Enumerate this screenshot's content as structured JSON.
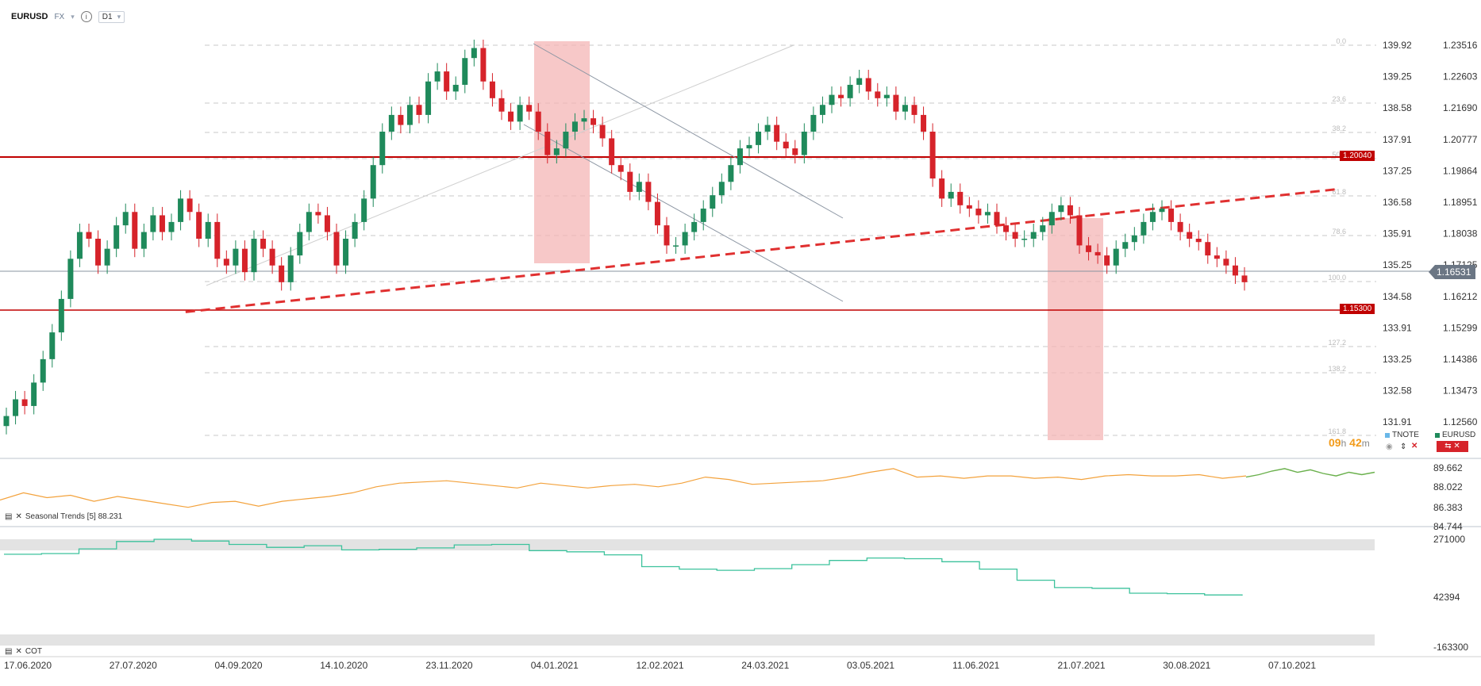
{
  "header": {
    "symbol": "EURUSD",
    "market": "FX",
    "info": "i",
    "timeframe": "D1",
    "dropdown": "▾"
  },
  "legend": {
    "tnote": "TNOTE",
    "eurusd": "EURUSD",
    "timer_h": "09",
    "h": "h",
    "timer_m": "42",
    "m": "m"
  },
  "colors": {
    "up": "#1f8a5b",
    "down": "#d6232a",
    "tnote": "#f3a23c",
    "seasonal": "#6ab04c",
    "cot": "#3cc29c",
    "hline": "#c00000",
    "fib": "#c8c8c8",
    "zone": "#f4b6b6",
    "axis": "#333333"
  },
  "panels": {
    "seasonal_label": "Seasonal  Trends [5] 88.231",
    "cot_label": "COT"
  },
  "chart_data": {
    "type": "candlestick",
    "title": "EURUSD",
    "x_ticks": [
      "17.06.2020",
      "27.07.2020",
      "04.09.2020",
      "14.10.2020",
      "23.11.2020",
      "04.01.2021",
      "12.02.2021",
      "24.03.2021",
      "03.05.2021",
      "11.06.2021",
      "21.07.2021",
      "30.08.2021",
      "07.10.2021"
    ],
    "price_axis_right": [
      "1.23516",
      "1.22603",
      "1.21690",
      "1.20777",
      "1.19864",
      "1.18951",
      "1.18038",
      "1.17125",
      "1.16212",
      "1.15299",
      "1.14386",
      "1.13473",
      "1.12560"
    ],
    "price_axis_left": [
      "139.92",
      "139.25",
      "138.58",
      "137.91",
      "137.25",
      "136.58",
      "135.91",
      "135.25",
      "134.58",
      "133.91",
      "133.25",
      "132.58",
      "131.91"
    ],
    "ylim": [
      1.1185,
      1.2375
    ],
    "current_price": "1.16531",
    "horizontal_levels": [
      {
        "label": "1.20040",
        "value": 1.2004
      },
      {
        "label": "1.15300",
        "value": 1.153
      }
    ],
    "fib_labels": [
      "0.0",
      "23.6",
      "38.2",
      "50.0",
      "61.8",
      "78.6",
      "100.0",
      "127.2",
      "138.2",
      "161.8"
    ],
    "trendline_start": {
      "date": "2020-09-04",
      "value": 1.158
    },
    "trendline_end": {
      "date": "2021-10-30",
      "value": 1.1928
    },
    "close_series": [
      1.125,
      1.13,
      1.128,
      1.135,
      1.142,
      1.15,
      1.16,
      1.172,
      1.18,
      1.178,
      1.17,
      1.175,
      1.182,
      1.186,
      1.175,
      1.18,
      1.185,
      1.18,
      1.183,
      1.19,
      1.186,
      1.178,
      1.183,
      1.172,
      1.17,
      1.175,
      1.168,
      1.178,
      1.175,
      1.17,
      1.165,
      1.173,
      1.18,
      1.186,
      1.185,
      1.18,
      1.17,
      1.178,
      1.183,
      1.19,
      1.2,
      1.21,
      1.215,
      1.212,
      1.218,
      1.215,
      1.225,
      1.228,
      1.222,
      1.224,
      1.232,
      1.235,
      1.225,
      1.22,
      1.216,
      1.213,
      1.218,
      1.216,
      1.21,
      1.203,
      1.205,
      1.21,
      1.213,
      1.214,
      1.212,
      1.208,
      1.2,
      1.198,
      1.192,
      1.195,
      1.189,
      1.182,
      1.176,
      1.176,
      1.18,
      1.183,
      1.187,
      1.191,
      1.195,
      1.2,
      1.205,
      1.206,
      1.21,
      1.212,
      1.207,
      1.205,
      1.203,
      1.21,
      1.215,
      1.218,
      1.221,
      1.22,
      1.224,
      1.226,
      1.222,
      1.22,
      1.221,
      1.216,
      1.218,
      1.215,
      1.21,
      1.196,
      1.19,
      1.192,
      1.188,
      1.187,
      1.185,
      1.186,
      1.182,
      1.18,
      1.178,
      1.178,
      1.18,
      1.182,
      1.186,
      1.188,
      1.185,
      1.176,
      1.174,
      1.173,
      1.17,
      1.175,
      1.177,
      1.179,
      1.183,
      1.186,
      1.187,
      1.183,
      1.18,
      1.178,
      1.177,
      1.173,
      1.172,
      1.17,
      1.167,
      1.165
    ],
    "tnote_axis": [
      "89.662",
      "88.022",
      "86.383",
      "84.744"
    ],
    "tnote_series": [
      87.0,
      87.6,
      87.2,
      87.4,
      86.9,
      87.3,
      87.0,
      86.7,
      86.4,
      86.8,
      86.9,
      86.5,
      86.9,
      87.1,
      87.3,
      87.6,
      88.1,
      88.4,
      88.5,
      88.6,
      88.4,
      88.2,
      88.0,
      88.4,
      88.2,
      88.0,
      88.2,
      88.3,
      88.1,
      88.4,
      88.9,
      88.7,
      88.3,
      88.4,
      88.5,
      88.6,
      88.9,
      89.3,
      89.6,
      88.9,
      89.0,
      88.8,
      89.0,
      89.0,
      88.8,
      88.9,
      88.7,
      89.0,
      89.1,
      89.0,
      89.0,
      89.1,
      88.8,
      89.0
    ],
    "seasonal_series": [
      88.9,
      89.1,
      89.4,
      89.6,
      89.3,
      89.5,
      89.2,
      89.0,
      89.3,
      89.1,
      89.3
    ],
    "cot_axis": [
      "271000",
      "42394",
      "-163300"
    ],
    "cot_series": [
      210000,
      213000,
      232000,
      262000,
      271000,
      264000,
      250000,
      238000,
      245000,
      228000,
      230000,
      236000,
      248000,
      250000,
      225000,
      220000,
      208000,
      160000,
      150000,
      145000,
      152000,
      168000,
      185000,
      195000,
      192000,
      180000,
      150000,
      105000,
      75000,
      72000,
      52000,
      50000,
      45000,
      42394
    ]
  }
}
